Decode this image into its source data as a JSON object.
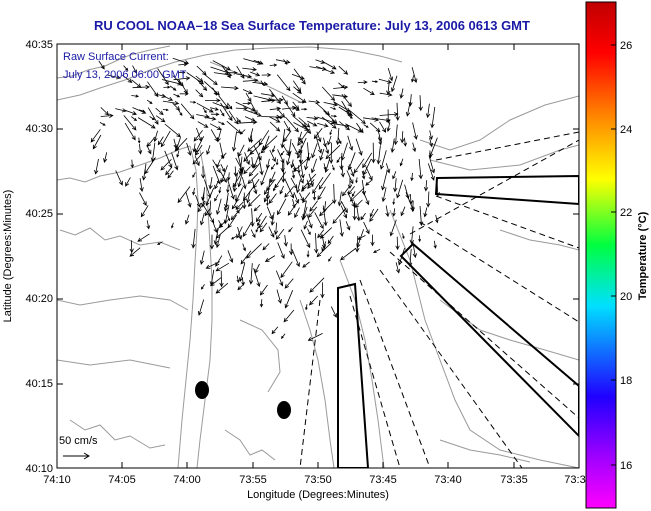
{
  "title": "RU COOL  NOAA–18  Sea Surface Temperature:  July 13, 2006 0613 GMT",
  "inset": {
    "line1": "Raw Surface Current:",
    "line2": "July 13, 2006 06:00 GMT"
  },
  "scale_label": "50 cm/s",
  "x_axis": {
    "label": "Longitude (Degrees:Minutes)",
    "ticks": [
      "74:10",
      "74:05",
      "74:00",
      "73:55",
      "73:50",
      "73:45",
      "73:40",
      "73:35",
      "73:3"
    ]
  },
  "y_axis": {
    "label": "Latitude (Degrees:Minutes)",
    "ticks": [
      "40:35",
      "40:30",
      "40:25",
      "40:20",
      "40:15",
      "40:10"
    ]
  },
  "colorbar": {
    "label": "Temperature (°C)",
    "ticks": [
      "26",
      "24",
      "22",
      "20",
      "18",
      "16"
    ],
    "range": [
      15.0,
      27.5
    ],
    "colors": [
      "#ff00ff",
      "#8000ff",
      "#0000ff",
      "#00ffff",
      "#00ff00",
      "#ffff00",
      "#ff8000",
      "#ff0000",
      "#c00000"
    ]
  },
  "colors": {
    "title": "#1a1aa6",
    "coast": "#9a9a9a",
    "vectors": "#000000"
  }
}
